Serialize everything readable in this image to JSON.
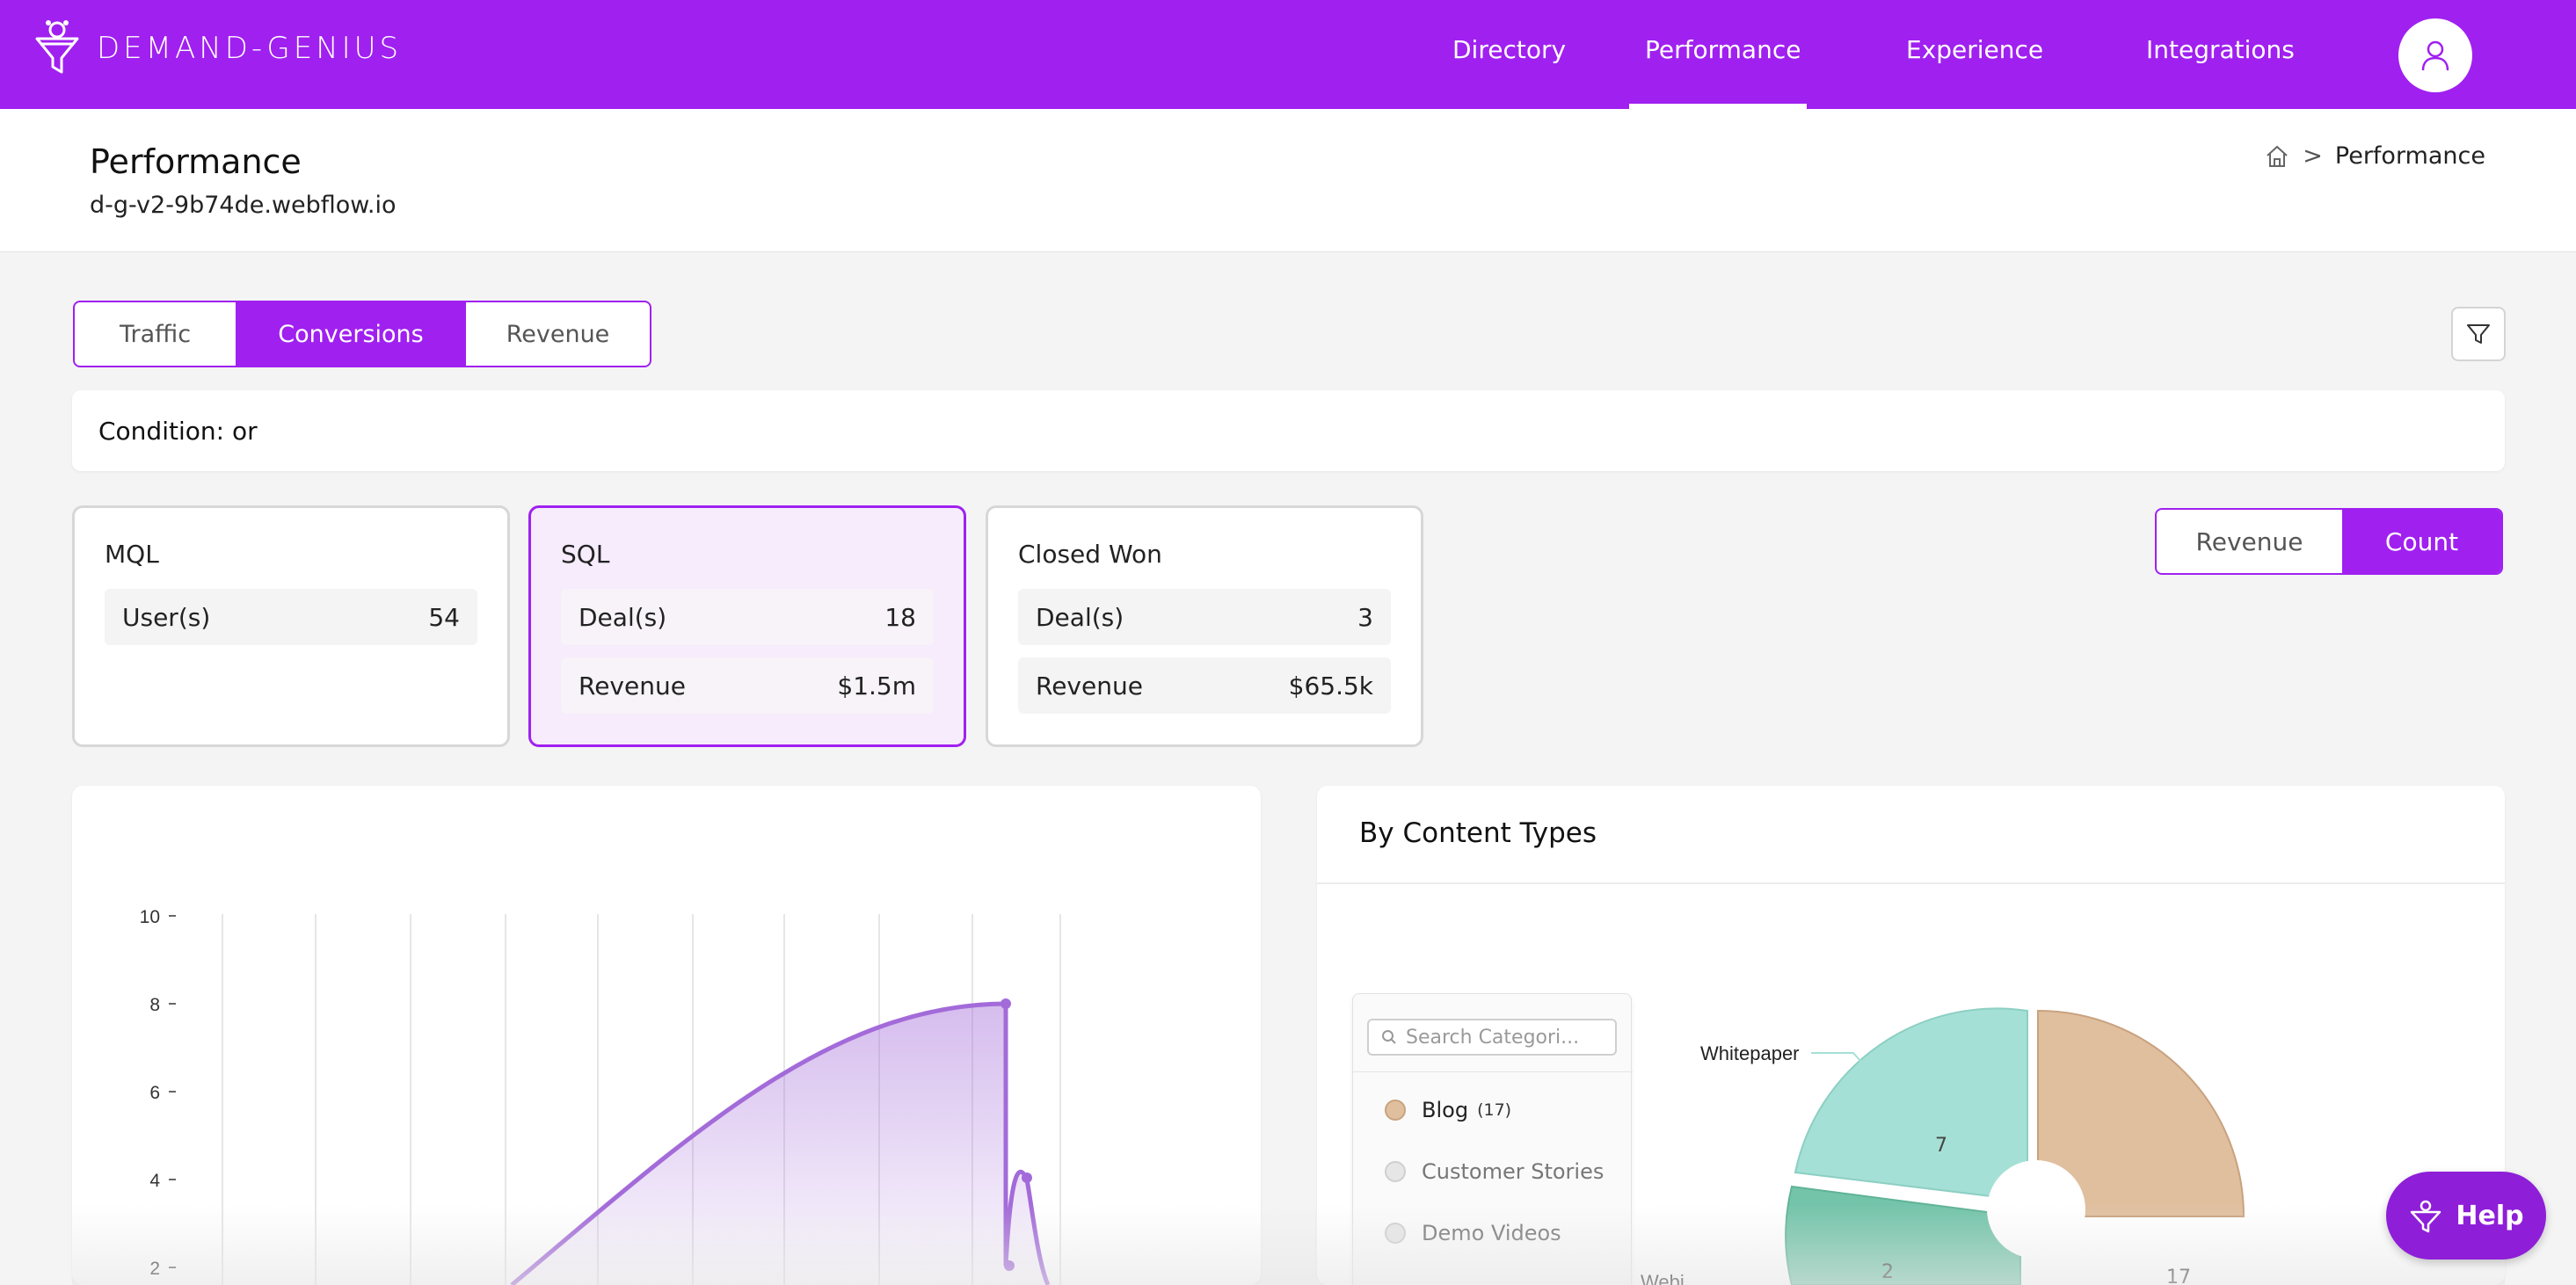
{
  "brand": {
    "name": "DEMAND-GENIUS",
    "logo_icon": "funnel-logo-icon"
  },
  "nav": {
    "items": [
      {
        "label": "Directory"
      },
      {
        "label": "Performance",
        "active": true
      },
      {
        "label": "Experience"
      },
      {
        "label": "Integrations"
      }
    ],
    "avatar_icon": "user-icon"
  },
  "header": {
    "title": "Performance",
    "subtitle": "d-g-v2-9b74de.webflow.io",
    "breadcrumb": {
      "home_icon": "home-icon",
      "separator": ">",
      "current": "Performance"
    }
  },
  "tabs": [
    {
      "label": "Traffic"
    },
    {
      "label": "Conversions",
      "active": true
    },
    {
      "label": "Revenue"
    }
  ],
  "filter_icon": "filter-icon",
  "condition": {
    "text": "Condition: or"
  },
  "cards": [
    {
      "title": "MQL",
      "rows": [
        {
          "label": "User(s)",
          "value": "54"
        }
      ]
    },
    {
      "title": "SQL",
      "active": true,
      "rows": [
        {
          "label": "Deal(s)",
          "value": "18"
        },
        {
          "label": "Revenue",
          "value": "$1.5m"
        }
      ]
    },
    {
      "title": "Closed Won",
      "rows": [
        {
          "label": "Deal(s)",
          "value": "3"
        },
        {
          "label": "Revenue",
          "value": "$65.5k"
        }
      ]
    }
  ],
  "toggle": {
    "revenue": "Revenue",
    "count": "Count",
    "selected": "Count"
  },
  "content_types": {
    "title": "By Content Types",
    "search_placeholder": "Search Categori...",
    "items": [
      {
        "label": "Blog",
        "count": "(17)",
        "color": "#e0bf9f"
      },
      {
        "label": "Customer Stories",
        "color": "#e6e6e6"
      },
      {
        "label": "Demo Videos",
        "color": "#e6e6e6"
      }
    ]
  },
  "chart_data": [
    {
      "type": "area",
      "yticks": [
        "10",
        "8",
        "6",
        "4",
        "2"
      ],
      "ylim": [
        0,
        10
      ],
      "grid": true,
      "color": "#a36bd9"
    },
    {
      "type": "pie",
      "slices": [
        {
          "label": "Blog",
          "value": 17,
          "color": "#e0bf9f"
        },
        {
          "label": "Whitepaper",
          "value": 7,
          "color": "#a5e0d6"
        },
        {
          "label": "",
          "value": 2,
          "color": "#74c4aa"
        }
      ],
      "labels": {
        "whitepaper": "Whitepaper",
        "blog_value": "17",
        "whitepaper_value": "7",
        "other_value": "2",
        "cut_label": "Webi"
      }
    }
  ],
  "help": {
    "label": "Help"
  }
}
